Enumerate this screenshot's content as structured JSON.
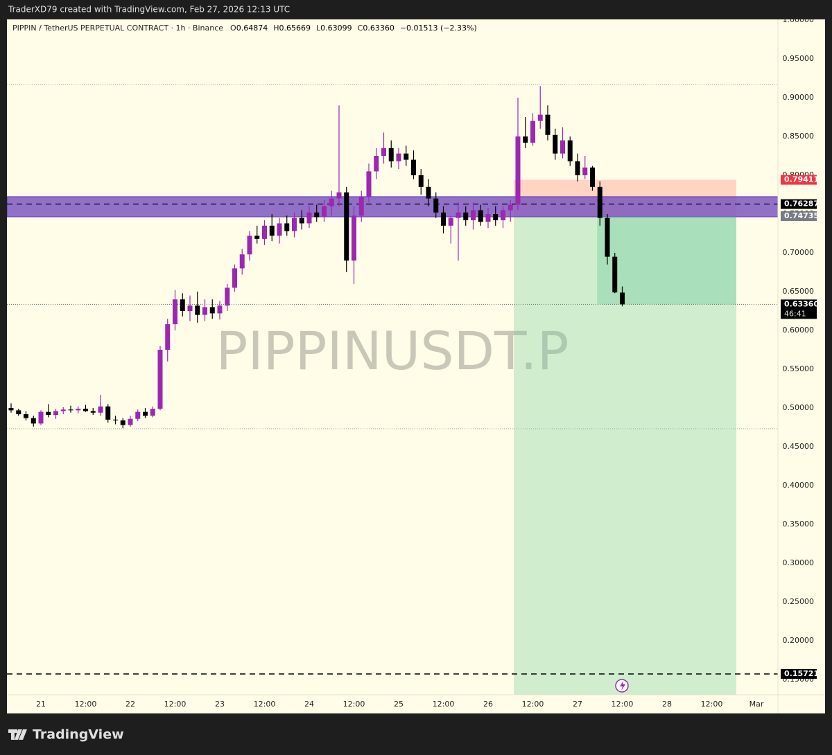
{
  "header": "TraderXD79 created with TradingView.com, Feb 27, 2026 12:13 UTC",
  "footer_logo": "TradingView",
  "chart_data": {
    "type": "candlestick",
    "symbol_line": "PIPPIN / TetherUS PERPETUAL CONTRACT · 1h · Binance",
    "legend_items": [
      {
        "label": "O",
        "value": "0.64874"
      },
      {
        "label": "H",
        "value": "0.65669"
      },
      {
        "label": "L",
        "value": "0.63099"
      },
      {
        "label": "C",
        "value": "0.63360"
      }
    ],
    "change": "−0.01513 (−2.33%)",
    "watermark": "PIPPINUSDT.P",
    "up_color": "#9c27b0",
    "down_color": "#000000",
    "background": "#fffde7",
    "xlim": [
      -9.116,
      197.77
    ],
    "ylim": [
      0.1304,
      1.0009
    ],
    "xticks": [
      {
        "value": 0,
        "label": "21"
      },
      {
        "value": 12,
        "label": "12:00"
      },
      {
        "value": 24,
        "label": "22"
      },
      {
        "value": 36,
        "label": "12:00"
      },
      {
        "value": 48,
        "label": "23"
      },
      {
        "value": 60,
        "label": "12:00"
      },
      {
        "value": 72,
        "label": "24"
      },
      {
        "value": 84,
        "label": "12:00"
      },
      {
        "value": 96,
        "label": "25"
      },
      {
        "value": 108,
        "label": "12:00"
      },
      {
        "value": 120,
        "label": "26"
      },
      {
        "value": 132,
        "label": "12:00"
      },
      {
        "value": 144,
        "label": "27"
      },
      {
        "value": 156,
        "label": "12:00"
      },
      {
        "value": 168,
        "label": "28"
      },
      {
        "value": 180,
        "label": "12:00"
      },
      {
        "value": 192,
        "label": "Mar"
      }
    ],
    "yticks": [
      {
        "value": 0.15,
        "label": "0.15000"
      },
      {
        "value": 0.2,
        "label": "0.20000"
      },
      {
        "value": 0.25,
        "label": "0.25000"
      },
      {
        "value": 0.3,
        "label": "0.30000"
      },
      {
        "value": 0.35,
        "label": "0.35000"
      },
      {
        "value": 0.4,
        "label": "0.40000"
      },
      {
        "value": 0.45,
        "label": "0.45000"
      },
      {
        "value": 0.5,
        "label": "0.50000"
      },
      {
        "value": 0.55,
        "label": "0.55000"
      },
      {
        "value": 0.6,
        "label": "0.60000"
      },
      {
        "value": 0.65,
        "label": "0.65000"
      },
      {
        "value": 0.7,
        "label": "0.70000"
      },
      {
        "value": 0.75,
        "label": "0.75000"
      },
      {
        "value": 0.8,
        "label": "0.80000"
      },
      {
        "value": 0.85,
        "label": "0.85000"
      },
      {
        "value": 0.9,
        "label": "0.90000"
      },
      {
        "value": 0.95,
        "label": "0.95000"
      },
      {
        "value": 1.0,
        "label": "1.00000"
      }
    ],
    "x": [
      -8,
      -6,
      -4,
      -2,
      0,
      2,
      4,
      6,
      8,
      10,
      12,
      14,
      16,
      18,
      20,
      22,
      24,
      26,
      28,
      30,
      32,
      34,
      36,
      38,
      40,
      42,
      44,
      46,
      48,
      50,
      52,
      54,
      56,
      58,
      60,
      62,
      64,
      66,
      68,
      70,
      72,
      74,
      76,
      78,
      80,
      82,
      84,
      86,
      88,
      90,
      92,
      94,
      96,
      98,
      100,
      102,
      104,
      106,
      108,
      110,
      112,
      114,
      116,
      118,
      120,
      122,
      124,
      126,
      128,
      130,
      132,
      134,
      136,
      138,
      140,
      142,
      144,
      146,
      148,
      150,
      152,
      154,
      156
    ],
    "ohlc": [
      [
        0.5,
        0.506,
        0.494,
        0.497
      ],
      [
        0.497,
        0.499,
        0.49,
        0.492
      ],
      [
        0.492,
        0.496,
        0.484,
        0.487
      ],
      [
        0.487,
        0.49,
        0.476,
        0.48
      ],
      [
        0.48,
        0.497,
        0.478,
        0.495
      ],
      [
        0.495,
        0.505,
        0.488,
        0.491
      ],
      [
        0.491,
        0.499,
        0.486,
        0.496
      ],
      [
        0.496,
        0.501,
        0.492,
        0.498
      ],
      [
        0.498,
        0.503,
        0.494,
        0.497
      ],
      [
        0.497,
        0.502,
        0.493,
        0.499
      ],
      [
        0.499,
        0.504,
        0.495,
        0.496
      ],
      [
        0.496,
        0.5,
        0.491,
        0.494
      ],
      [
        0.494,
        0.517,
        0.49,
        0.502
      ],
      [
        0.502,
        0.505,
        0.481,
        0.485
      ],
      [
        0.485,
        0.49,
        0.479,
        0.484
      ],
      [
        0.484,
        0.487,
        0.474,
        0.478
      ],
      [
        0.478,
        0.49,
        0.476,
        0.486
      ],
      [
        0.486,
        0.498,
        0.483,
        0.495
      ],
      [
        0.495,
        0.5,
        0.487,
        0.49
      ],
      [
        0.49,
        0.502,
        0.488,
        0.499
      ],
      [
        0.499,
        0.58,
        0.497,
        0.575
      ],
      [
        0.575,
        0.615,
        0.56,
        0.608
      ],
      [
        0.608,
        0.652,
        0.6,
        0.64
      ],
      [
        0.64,
        0.648,
        0.618,
        0.625
      ],
      [
        0.625,
        0.645,
        0.612,
        0.632
      ],
      [
        0.632,
        0.65,
        0.61,
        0.62
      ],
      [
        0.62,
        0.64,
        0.612,
        0.63
      ],
      [
        0.63,
        0.64,
        0.615,
        0.622
      ],
      [
        0.622,
        0.638,
        0.614,
        0.632
      ],
      [
        0.632,
        0.66,
        0.625,
        0.655
      ],
      [
        0.655,
        0.685,
        0.65,
        0.68
      ],
      [
        0.68,
        0.705,
        0.672,
        0.698
      ],
      [
        0.698,
        0.728,
        0.69,
        0.722
      ],
      [
        0.722,
        0.735,
        0.712,
        0.718
      ],
      [
        0.718,
        0.742,
        0.71,
        0.735
      ],
      [
        0.735,
        0.75,
        0.715,
        0.722
      ],
      [
        0.722,
        0.745,
        0.712,
        0.738
      ],
      [
        0.738,
        0.748,
        0.722,
        0.728
      ],
      [
        0.728,
        0.752,
        0.72,
        0.745
      ],
      [
        0.745,
        0.755,
        0.73,
        0.738
      ],
      [
        0.738,
        0.76,
        0.732,
        0.752
      ],
      [
        0.752,
        0.762,
        0.74,
        0.746
      ],
      [
        0.746,
        0.768,
        0.74,
        0.76
      ],
      [
        0.76,
        0.78,
        0.748,
        0.77
      ],
      [
        0.77,
        0.89,
        0.76,
        0.778
      ],
      [
        0.778,
        0.785,
        0.675,
        0.69
      ],
      [
        0.69,
        0.76,
        0.66,
        0.748
      ],
      [
        0.748,
        0.78,
        0.74,
        0.772
      ],
      [
        0.772,
        0.815,
        0.765,
        0.805
      ],
      [
        0.805,
        0.835,
        0.795,
        0.825
      ],
      [
        0.825,
        0.855,
        0.815,
        0.835
      ],
      [
        0.835,
        0.845,
        0.81,
        0.818
      ],
      [
        0.818,
        0.835,
        0.808,
        0.828
      ],
      [
        0.828,
        0.838,
        0.812,
        0.82
      ],
      [
        0.82,
        0.832,
        0.795,
        0.8
      ],
      [
        0.8,
        0.808,
        0.775,
        0.785
      ],
      [
        0.785,
        0.795,
        0.76,
        0.77
      ],
      [
        0.77,
        0.778,
        0.745,
        0.752
      ],
      [
        0.752,
        0.76,
        0.725,
        0.735
      ],
      [
        0.735,
        0.748,
        0.712,
        0.745
      ],
      [
        0.745,
        0.765,
        0.69,
        0.752
      ],
      [
        0.752,
        0.76,
        0.735,
        0.742
      ],
      [
        0.742,
        0.765,
        0.73,
        0.755
      ],
      [
        0.755,
        0.762,
        0.735,
        0.74
      ],
      [
        0.74,
        0.758,
        0.732,
        0.75
      ],
      [
        0.75,
        0.76,
        0.735,
        0.742
      ],
      [
        0.742,
        0.76,
        0.732,
        0.755
      ],
      [
        0.755,
        0.768,
        0.74,
        0.762
      ],
      [
        0.762,
        0.9,
        0.755,
        0.85
      ],
      [
        0.85,
        0.875,
        0.835,
        0.842
      ],
      [
        0.842,
        0.88,
        0.838,
        0.87
      ],
      [
        0.87,
        0.915,
        0.86,
        0.878
      ],
      [
        0.878,
        0.89,
        0.845,
        0.852
      ],
      [
        0.852,
        0.86,
        0.82,
        0.828
      ],
      [
        0.828,
        0.862,
        0.822,
        0.845
      ],
      [
        0.845,
        0.85,
        0.812,
        0.818
      ],
      [
        0.818,
        0.828,
        0.792,
        0.8
      ],
      [
        0.8,
        0.825,
        0.795,
        0.81
      ],
      [
        0.81,
        0.812,
        0.78,
        0.785
      ],
      [
        0.785,
        0.792,
        0.735,
        0.745
      ],
      [
        0.745,
        0.75,
        0.685,
        0.695
      ],
      [
        0.695,
        0.7,
        0.648,
        0.649
      ],
      [
        0.64874,
        0.65669,
        0.63099,
        0.6336
      ]
    ],
    "zone": {
      "top": 0.7724,
      "bottom": 0.7464,
      "mid": 0.76287,
      "color": "#7e57c2"
    },
    "position": {
      "x_start": 126.9,
      "x_end": 186.6,
      "stop": 0.79411,
      "entry": 0.74735,
      "target": 0.13
    },
    "dotted_levels": [
      0.9165,
      0.4732
    ],
    "last_price": {
      "value": 0.6336,
      "label": "0.63360"
    },
    "countdown": "46:41",
    "target_line": 0.15721
  }
}
